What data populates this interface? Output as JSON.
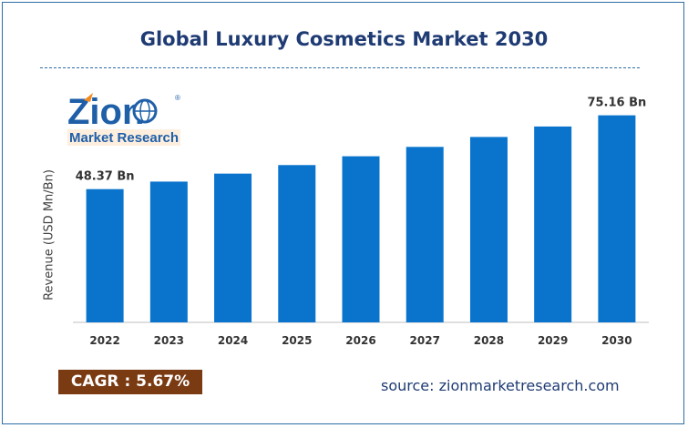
{
  "title": "Global Luxury Cosmetics Market 2030",
  "logo": {
    "brand": "Zion",
    "subtitle": "Market Research",
    "registered": "®"
  },
  "cagr_label": "CAGR : 5.67%",
  "source": "source: zionmarketresearch.com",
  "colors": {
    "bar": "#0a74cc",
    "title": "#1f3b73",
    "cagr_bg": "#7a3a12",
    "frame": "#2e6da4"
  },
  "chart_data": {
    "type": "bar",
    "title": "Global Luxury Cosmetics Market 2030",
    "ylabel": "Revenue (USD Mn/Bn)",
    "xlabel": "",
    "categories": [
      "2022",
      "2023",
      "2024",
      "2025",
      "2026",
      "2027",
      "2028",
      "2029",
      "2030"
    ],
    "values": [
      48.37,
      51.1,
      54.0,
      57.1,
      60.3,
      63.7,
      67.3,
      71.1,
      75.16
    ],
    "data_labels": {
      "2022": "48.37 Bn",
      "2030": "75.16 Bn"
    },
    "ylim": [
      0,
      80
    ],
    "grid": false,
    "legend": "none"
  }
}
